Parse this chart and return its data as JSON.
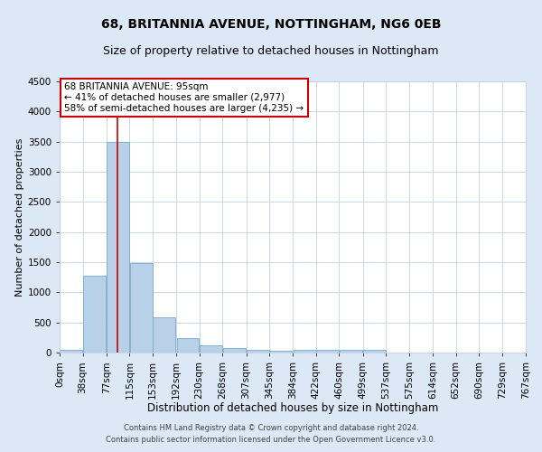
{
  "title": "68, BRITANNIA AVENUE, NOTTINGHAM, NG6 0EB",
  "subtitle": "Size of property relative to detached houses in Nottingham",
  "xlabel": "Distribution of detached houses by size in Nottingham",
  "ylabel": "Number of detached properties",
  "bin_labels": [
    "0sqm",
    "38sqm",
    "77sqm",
    "115sqm",
    "153sqm",
    "192sqm",
    "230sqm",
    "268sqm",
    "307sqm",
    "345sqm",
    "384sqm",
    "422sqm",
    "460sqm",
    "499sqm",
    "537sqm",
    "575sqm",
    "614sqm",
    "652sqm",
    "690sqm",
    "729sqm",
    "767sqm"
  ],
  "bin_edges": [
    0,
    38,
    77,
    115,
    153,
    192,
    230,
    268,
    307,
    345,
    384,
    422,
    460,
    499,
    537,
    575,
    614,
    652,
    690,
    729,
    767
  ],
  "bar_heights": [
    50,
    1270,
    3500,
    1480,
    580,
    245,
    120,
    80,
    50,
    35,
    40,
    40,
    50,
    40,
    0,
    0,
    0,
    0,
    0,
    0
  ],
  "bar_color": "#b8d0e8",
  "bar_edge_color": "#7aaac8",
  "red_line_x": 95,
  "ylim": [
    0,
    4500
  ],
  "yticks": [
    0,
    500,
    1000,
    1500,
    2000,
    2500,
    3000,
    3500,
    4000,
    4500
  ],
  "annotation_title": "68 BRITANNIA AVENUE: 95sqm",
  "annotation_line1": "← 41% of detached houses are smaller (2,977)",
  "annotation_line2": "58% of semi-detached houses are larger (4,235) →",
  "annotation_box_color": "#ffffff",
  "annotation_box_edge": "#cc0000",
  "title_fontsize": 10,
  "subtitle_fontsize": 9,
  "xlabel_fontsize": 8.5,
  "ylabel_fontsize": 8,
  "tick_fontsize": 7.5,
  "ann_fontsize": 7.5,
  "footer1": "Contains HM Land Registry data © Crown copyright and database right 2024.",
  "footer2": "Contains public sector information licensed under the Open Government Licence v3.0.",
  "bg_color": "#dce8f5",
  "plot_bg_color": "#ffffff"
}
